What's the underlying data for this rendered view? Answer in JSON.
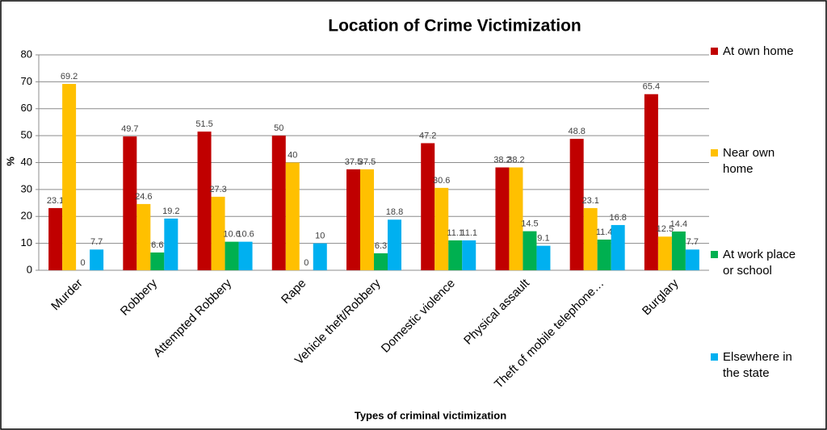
{
  "chart_data": {
    "type": "bar",
    "title": "Location of Crime Victimization",
    "x_label": "Types of criminal victimization",
    "y_label": "%",
    "categories": [
      "Murder",
      "Robbery",
      "Attempted Robbery",
      "Rape",
      "Vehicle theft/Robbery",
      "Domestic violence",
      "Physical assault",
      "Theft of mobile telephone…",
      "Burglary"
    ],
    "series": [
      {
        "name": "At own home",
        "color": "#c00000",
        "values": [
          23.1,
          49.7,
          51.5,
          50,
          37.5,
          47.2,
          38.2,
          48.8,
          65.4
        ]
      },
      {
        "name": "Near own home",
        "color": "#ffc000",
        "values": [
          69.2,
          24.6,
          27.3,
          40,
          37.5,
          30.6,
          38.2,
          23.1,
          12.5
        ]
      },
      {
        "name": "At work place or school",
        "color": "#00b050",
        "values": [
          0,
          6.6,
          10.6,
          0,
          6.3,
          11.1,
          14.5,
          11.4,
          14.4
        ]
      },
      {
        "name": "Elsewhere in the state",
        "color": "#00b0f0",
        "values": [
          7.7,
          19.2,
          10.6,
          10,
          18.8,
          11.1,
          9.1,
          16.8,
          7.7
        ]
      }
    ],
    "ylim": [
      0,
      80
    ],
    "yticks": [
      0,
      10,
      20,
      30,
      40,
      50,
      60,
      70,
      80
    ],
    "grid": true,
    "legend": "right"
  }
}
